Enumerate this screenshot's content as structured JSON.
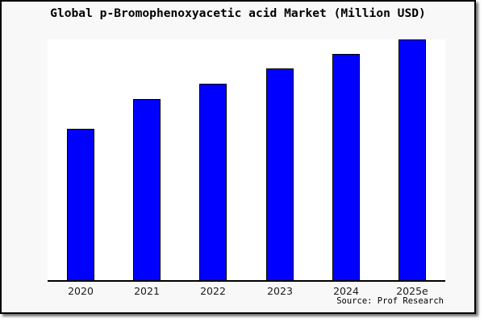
{
  "title": "Global p-Bromophenoxyacetic acid Market (Million USD)",
  "source_credit": "Source: Prof Research",
  "colors": {
    "bar_fill": "#0000ff",
    "bar_border": "#000000",
    "page_background": "#f8f8f8",
    "plot_background": "#ffffff",
    "axis_line": "#000000",
    "text": "#1a1a1a"
  },
  "chart_data": {
    "type": "bar",
    "title": "Global p-Bromophenoxyacetic acid Market (Million USD)",
    "categories": [
      "2020",
      "2021",
      "2022",
      "2023",
      "2024",
      "2025e"
    ],
    "values": [
      62.8,
      75.2,
      81.6,
      87.9,
      94.0,
      100
    ],
    "values_note": "estimated relative heights; y-axis is unlabeled, tallest bar (2025e) normalized to 100",
    "xlabel": "",
    "ylabel": "",
    "ylim": [
      0,
      100
    ],
    "y_axis_visible": false,
    "grid": false,
    "legend": "none",
    "source": "Source: Prof Research"
  }
}
